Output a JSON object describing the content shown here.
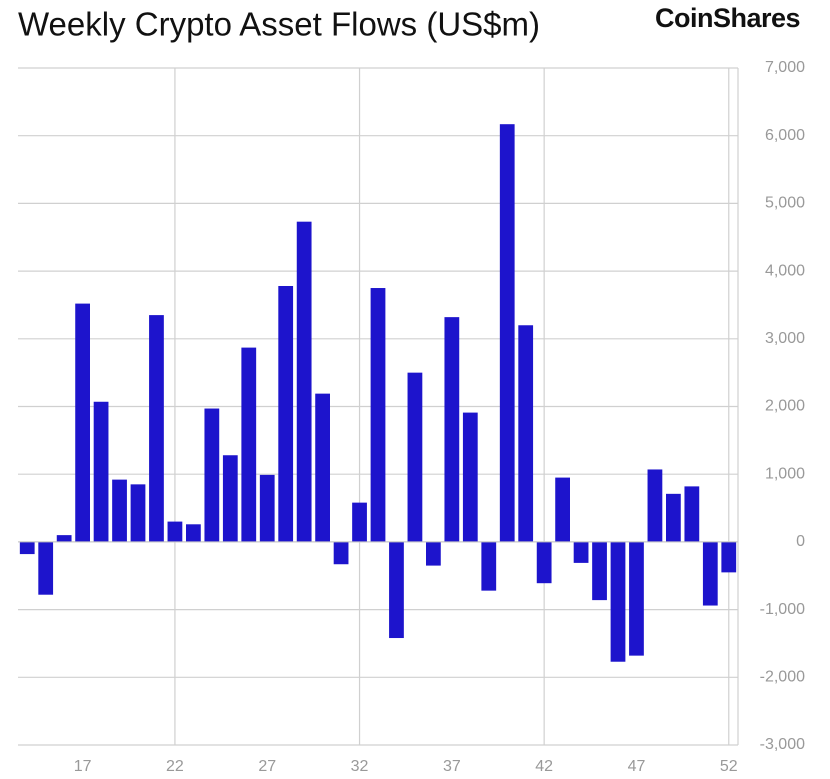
{
  "chart_data": {
    "type": "bar",
    "title": "Weekly Crypto Asset Flows (US$m)",
    "brand": "CoinShares",
    "x": [
      14,
      15,
      16,
      17,
      18,
      19,
      20,
      21,
      22,
      23,
      24,
      25,
      26,
      27,
      28,
      29,
      30,
      31,
      32,
      33,
      34,
      35,
      36,
      37,
      38,
      39,
      40,
      41,
      42,
      43,
      44,
      45,
      46,
      47,
      48,
      49,
      50,
      51,
      52
    ],
    "values": [
      -180,
      -780,
      100,
      3520,
      2070,
      920,
      850,
      3350,
      300,
      260,
      1970,
      1280,
      2870,
      990,
      3780,
      4730,
      2190,
      -330,
      580,
      3750,
      -1420,
      2500,
      -350,
      3320,
      1910,
      -720,
      6170,
      3200,
      -610,
      950,
      -310,
      -860,
      -1770,
      -1680,
      1070,
      710,
      820,
      -940,
      -450
    ],
    "color": "#1d14cc",
    "xlim": [
      13.5,
      52.5
    ],
    "xticks": [
      17,
      22,
      27,
      32,
      37,
      42,
      47,
      52
    ],
    "ylim": [
      -3000,
      7000
    ],
    "yticks": [
      {
        "value": -3000,
        "label": "-3,000"
      },
      {
        "value": -2000,
        "label": "-2,000"
      },
      {
        "value": -1000,
        "label": "-1,000"
      },
      0,
      {
        "value": 1000,
        "label": "1,000"
      },
      {
        "value": 2000,
        "label": "2,000"
      },
      {
        "value": 3000,
        "label": "3,000"
      },
      {
        "value": 4000,
        "label": "4,000"
      },
      {
        "value": 5000,
        "label": "5,000"
      },
      {
        "value": 6000,
        "label": "6,000"
      },
      {
        "value": 7000,
        "label": "7,000"
      }
    ],
    "grid": true
  }
}
